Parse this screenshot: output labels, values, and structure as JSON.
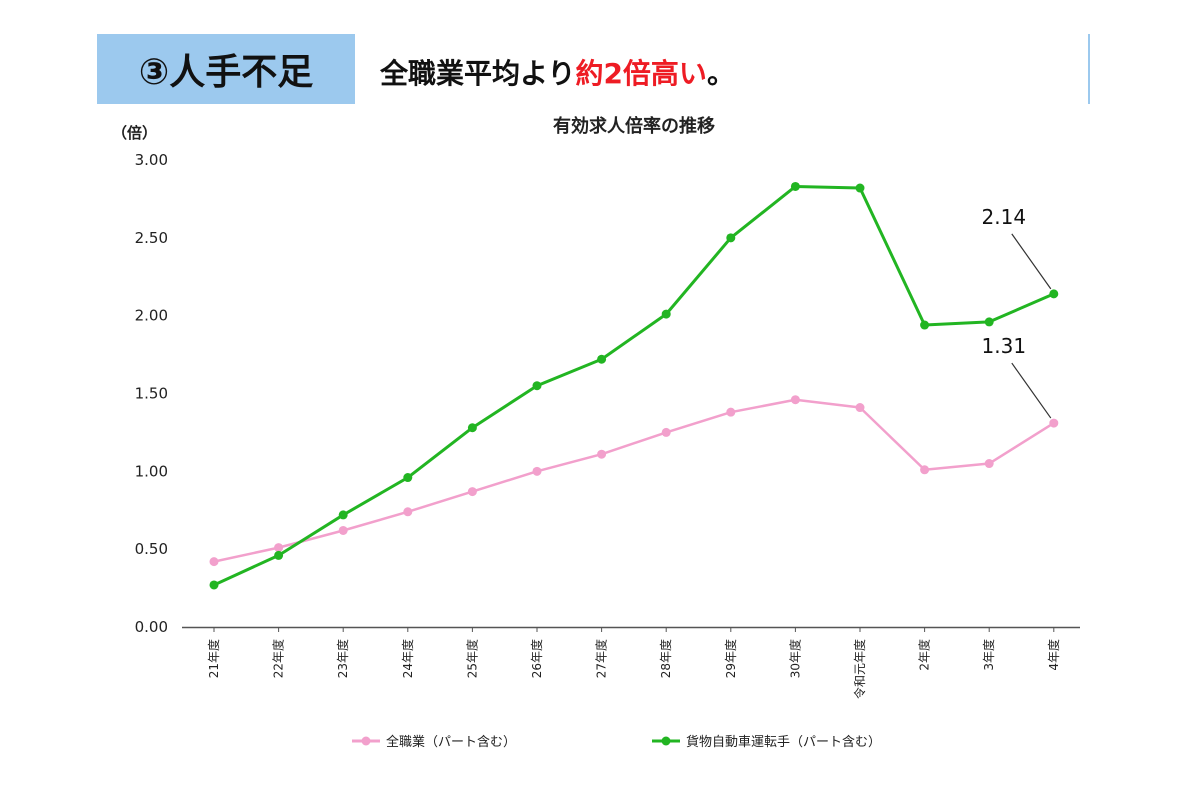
{
  "header": {
    "badge": "③人手不足",
    "text_prefix": "全職業平均より",
    "text_accent": "約2倍高い",
    "text_suffix": "。"
  },
  "chart_data": {
    "type": "line",
    "title": "有効求人倍率の推移",
    "ylabel": "（倍）",
    "ylim": [
      0,
      3
    ],
    "yticks": [
      "0.00",
      "0.50",
      "1.00",
      "1.50",
      "2.00",
      "2.50",
      "3.00"
    ],
    "categories": [
      "21年度",
      "22年度",
      "23年度",
      "24年度",
      "25年度",
      "26年度",
      "27年度",
      "28年度",
      "29年度",
      "30年度",
      "令和元年度",
      "2年度",
      "3年度",
      "4年度"
    ],
    "series": [
      {
        "name": "全職業（パート含む）",
        "color": "#f2a0cc",
        "values": [
          0.42,
          0.51,
          0.62,
          0.74,
          0.87,
          1.0,
          1.11,
          1.25,
          1.38,
          1.46,
          1.41,
          1.01,
          1.05,
          1.31
        ]
      },
      {
        "name": "貨物自動車運転手（パート含む）",
        "color": "#22b522",
        "values": [
          0.27,
          0.46,
          0.72,
          0.96,
          1.28,
          1.55,
          1.72,
          2.01,
          2.5,
          2.83,
          2.82,
          1.94,
          1.96,
          2.14
        ]
      }
    ],
    "annotations": [
      {
        "text": "2.14",
        "series": 1,
        "index": 13
      },
      {
        "text": "1.31",
        "series": 0,
        "index": 13
      }
    ],
    "grid": false,
    "legend_position": "bottom"
  }
}
